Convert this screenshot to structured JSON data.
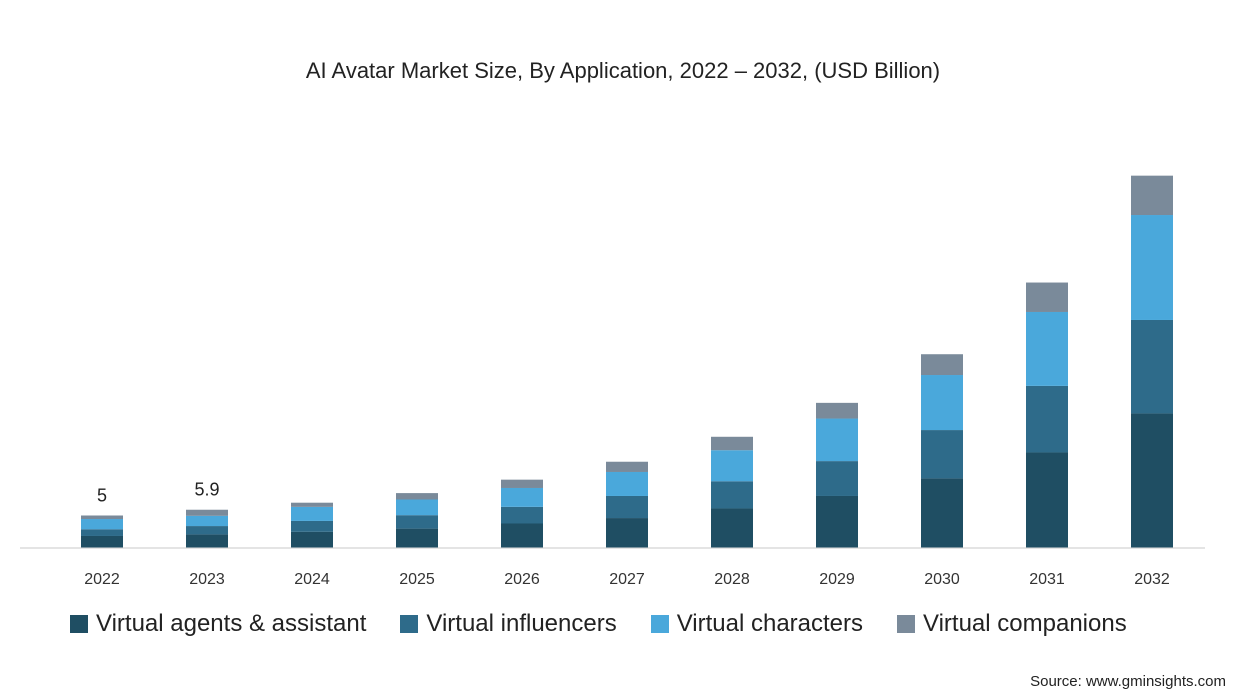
{
  "chart_data": {
    "type": "bar",
    "stacked": true,
    "title": "AI Avatar Market Size, By Application, 2022 – 2032, (USD Billion)",
    "xlabel": "",
    "ylabel": "",
    "categories": [
      "2022",
      "2023",
      "2024",
      "2025",
      "2026",
      "2027",
      "2028",
      "2029",
      "2030",
      "2031",
      "2032"
    ],
    "series": [
      {
        "name": "Virtual agents & assistant",
        "color": "#1f4e63",
        "values": [
          1.8,
          2.05,
          2.45,
          2.95,
          3.75,
          4.6,
          6.1,
          8.05,
          10.8,
          14.85,
          20.95
        ]
      },
      {
        "name": "Virtual influencers",
        "color": "#2e6b8a",
        "values": [
          1.05,
          1.3,
          1.7,
          2.1,
          2.6,
          3.45,
          4.25,
          5.45,
          7.55,
          10.4,
          14.6
        ]
      },
      {
        "name": "Virtual characters",
        "color": "#4aa8db",
        "values": [
          1.6,
          1.6,
          2.2,
          2.45,
          2.95,
          3.75,
          4.85,
          6.65,
          8.6,
          11.55,
          16.4
        ]
      },
      {
        "name": "Virtual companions",
        "color": "#7a8a9a",
        "values": [
          0.55,
          0.95,
          0.65,
          1.0,
          1.3,
          1.6,
          2.1,
          2.45,
          3.25,
          4.6,
          6.15
        ]
      }
    ],
    "data_labels": [
      {
        "category": "2022",
        "text": "5"
      },
      {
        "category": "2023",
        "text": "5.9"
      }
    ],
    "ylim": [
      0,
      60
    ],
    "grid": false,
    "legend": "bottom"
  },
  "source": "Source: www.gminsights.com"
}
